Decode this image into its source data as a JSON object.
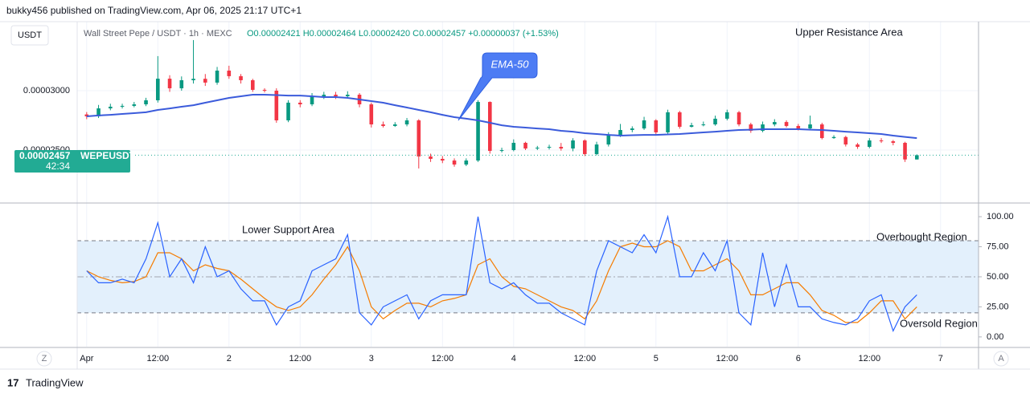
{
  "page": {
    "header": "bukky456 published on TradingView.com, Apr 06, 2025 21:17 UTC+1",
    "currency": "USDT",
    "symbol": "Wall Street Pepe / USDT · 1h · MEXC",
    "ohlc": "O0.00002421 H0.00002464 L0.00002420 C0.00002457 +0.00000037 (+1.53%)",
    "countdown": "42:34",
    "left_button": "Z",
    "right_button": "A",
    "brand": "TradingView",
    "logo": "17"
  },
  "chart_data": [
    {
      "type": "candlestick",
      "annotations": [
        "Upper Resistance Area"
      ],
      "x": [
        0,
        2,
        4,
        6,
        8,
        10,
        12,
        14,
        16,
        18,
        20,
        22,
        24,
        26,
        28,
        30,
        32,
        34,
        36,
        38,
        40,
        42,
        44,
        46,
        48,
        50,
        52,
        54,
        56,
        58,
        60,
        62,
        64,
        66,
        68,
        70,
        72,
        74,
        76,
        78,
        80,
        82,
        84,
        86,
        88,
        90,
        92,
        94,
        96,
        98,
        100,
        102,
        104,
        106,
        108,
        110,
        112,
        114,
        116,
        118,
        120,
        122,
        124,
        126,
        128,
        130,
        132,
        134,
        136,
        138,
        140
      ],
      "xlim": [
        -1.6,
        150.4
      ],
      "xticks": [
        {
          "value": 0,
          "label": "Apr"
        },
        {
          "value": 12,
          "label": "12:00"
        },
        {
          "value": 24,
          "label": "2"
        },
        {
          "value": 36,
          "label": "12:00"
        },
        {
          "value": 48,
          "label": "3"
        },
        {
          "value": 60,
          "label": "12:00"
        },
        {
          "value": 72,
          "label": "4"
        },
        {
          "value": 84,
          "label": "12:00"
        },
        {
          "value": 96,
          "label": "5"
        },
        {
          "value": 108,
          "label": "12:00"
        },
        {
          "value": 120,
          "label": "6"
        },
        {
          "value": 132,
          "label": "12:00"
        },
        {
          "value": 144,
          "label": "7"
        }
      ],
      "ylim": [
        2.061e-05,
        3.581e-05
      ],
      "yticks": [
        {
          "value": 2.5e-05,
          "label": "0.00002500"
        },
        {
          "value": 3e-05,
          "label": "0.00003000"
        }
      ],
      "grid": true,
      "last_price": 2.457e-05,
      "series": [
        {
          "name": "WEPEUSDT",
          "up_color": "#089981",
          "down_color": "#f23645",
          "values": [
            [
              2.8e-05,
              2.82e-05,
              2.76e-05,
              2.784e-05
            ],
            [
              2.784e-05,
              2.88e-05,
              2.77e-05,
              2.851e-05
            ],
            [
              2.851e-05,
              2.89e-05,
              2.835e-05,
              2.865e-05
            ],
            [
              2.865e-05,
              2.89e-05,
              2.85e-05,
              2.872e-05
            ],
            [
              2.872e-05,
              2.905e-05,
              2.86e-05,
              2.885e-05
            ],
            [
              2.885e-05,
              2.94e-05,
              2.87e-05,
              2.919e-05
            ],
            [
              2.919e-05,
              3.291e-05,
              2.9e-05,
              3.101e-05
            ],
            [
              3.101e-05,
              3.13e-05,
              2.99e-05,
              3.02e-05
            ],
            [
              3.02e-05,
              3.12e-05,
              3e-05,
              3.088e-05
            ],
            [
              3.088e-05,
              3.426e-05,
              3.06e-05,
              3.1e-05
            ],
            [
              3.1e-05,
              3.14e-05,
              3.04e-05,
              3.068e-05
            ],
            [
              3.068e-05,
              3.2e-05,
              3.05e-05,
              3.169e-05
            ],
            [
              3.169e-05,
              3.21e-05,
              3.1e-05,
              3.122e-05
            ],
            [
              3.122e-05,
              3.14e-05,
              3.06e-05,
              3.088e-05
            ],
            [
              3.088e-05,
              3.1e-05,
              2.99e-05,
              3.007e-05
            ],
            [
              3.007e-05,
              3.02e-05,
              2.985e-05,
              3e-05
            ],
            [
              3e-05,
              3.02e-05,
              2.73e-05,
              2.75e-05
            ],
            [
              2.75e-05,
              2.92e-05,
              2.735e-05,
              2.899e-05
            ],
            [
              2.899e-05,
              2.92e-05,
              2.86e-05,
              2.885e-05
            ],
            [
              2.885e-05,
              2.98e-05,
              2.87e-05,
              2.953e-05
            ],
            [
              2.953e-05,
              2.99e-05,
              2.93e-05,
              2.966e-05
            ],
            [
              2.966e-05,
              2.99e-05,
              2.93e-05,
              2.953e-05
            ],
            [
              2.953e-05,
              2.995e-05,
              2.94e-05,
              2.966e-05
            ],
            [
              2.966e-05,
              2.98e-05,
              2.86e-05,
              2.885e-05
            ],
            [
              2.885e-05,
              2.9e-05,
              2.69e-05,
              2.716e-05
            ],
            [
              2.716e-05,
              2.74e-05,
              2.69e-05,
              2.703e-05
            ],
            [
              2.703e-05,
              2.735e-05,
              2.695e-05,
              2.716e-05
            ],
            [
              2.716e-05,
              2.77e-05,
              2.7e-05,
              2.75e-05
            ],
            [
              2.75e-05,
              2.76e-05,
              2.345e-05,
              2.446e-05
            ],
            [
              2.446e-05,
              2.47e-05,
              2.4e-05,
              2.426e-05
            ],
            [
              2.426e-05,
              2.45e-05,
              2.39e-05,
              2.412e-05
            ],
            [
              2.412e-05,
              2.43e-05,
              2.36e-05,
              2.378e-05
            ],
            [
              2.378e-05,
              2.43e-05,
              2.365e-05,
              2.412e-05
            ],
            [
              2.412e-05,
              2.92e-05,
              2.4e-05,
              2.905e-05
            ],
            [
              2.905e-05,
              2.91e-05,
              2.47e-05,
              2.493e-05
            ],
            [
              2.493e-05,
              2.52e-05,
              2.48e-05,
              2.5e-05
            ],
            [
              2.5e-05,
              2.59e-05,
              2.49e-05,
              2.561e-05
            ],
            [
              2.561e-05,
              2.57e-05,
              2.5e-05,
              2.513e-05
            ],
            [
              2.513e-05,
              2.535e-05,
              2.5e-05,
              2.52e-05
            ],
            [
              2.52e-05,
              2.545e-05,
              2.505e-05,
              2.527e-05
            ],
            [
              2.527e-05,
              2.56e-05,
              2.495e-05,
              2.513e-05
            ],
            [
              2.513e-05,
              2.6e-05,
              2.49e-05,
              2.581e-05
            ],
            [
              2.581e-05,
              2.59e-05,
              2.45e-05,
              2.466e-05
            ],
            [
              2.466e-05,
              2.57e-05,
              2.455e-05,
              2.547e-05
            ],
            [
              2.547e-05,
              2.65e-05,
              2.53e-05,
              2.628e-05
            ],
            [
              2.628e-05,
              2.72e-05,
              2.61e-05,
              2.669e-05
            ],
            [
              2.669e-05,
              2.7e-05,
              2.65e-05,
              2.682e-05
            ],
            [
              2.682e-05,
              2.78e-05,
              2.67e-05,
              2.75e-05
            ],
            [
              2.75e-05,
              2.76e-05,
              2.63e-05,
              2.649e-05
            ],
            [
              2.649e-05,
              2.84e-05,
              2.63e-05,
              2.818e-05
            ],
            [
              2.818e-05,
              2.83e-05,
              2.68e-05,
              2.696e-05
            ],
            [
              2.696e-05,
              2.73e-05,
              2.69e-05,
              2.709e-05
            ],
            [
              2.709e-05,
              2.74e-05,
              2.7e-05,
              2.716e-05
            ],
            [
              2.716e-05,
              2.79e-05,
              2.705e-05,
              2.764e-05
            ],
            [
              2.764e-05,
              2.84e-05,
              2.75e-05,
              2.818e-05
            ],
            [
              2.818e-05,
              2.83e-05,
              2.7e-05,
              2.716e-05
            ],
            [
              2.716e-05,
              2.73e-05,
              2.645e-05,
              2.662e-05
            ],
            [
              2.662e-05,
              2.74e-05,
              2.65e-05,
              2.716e-05
            ],
            [
              2.716e-05,
              2.76e-05,
              2.7e-05,
              2.736e-05
            ],
            [
              2.736e-05,
              2.75e-05,
              2.69e-05,
              2.703e-05
            ],
            [
              2.703e-05,
              2.72e-05,
              2.665e-05,
              2.682e-05
            ],
            [
              2.682e-05,
              2.79e-05,
              2.67e-05,
              2.716e-05
            ],
            [
              2.716e-05,
              2.73e-05,
              2.59e-05,
              2.601e-05
            ],
            [
              2.601e-05,
              2.625e-05,
              2.595e-05,
              2.61e-05
            ],
            [
              2.61e-05,
              2.62e-05,
              2.53e-05,
              2.547e-05
            ],
            [
              2.547e-05,
              2.56e-05,
              2.51e-05,
              2.527e-05
            ],
            [
              2.527e-05,
              2.6e-05,
              2.515e-05,
              2.581e-05
            ],
            [
              2.581e-05,
              2.6e-05,
              2.56e-05,
              2.574e-05
            ],
            [
              2.574e-05,
              2.585e-05,
              2.54e-05,
              2.561e-05
            ],
            [
              2.561e-05,
              2.57e-05,
              2.4e-05,
              2.421e-05
            ],
            [
              2.421e-05,
              2.464e-05,
              2.42e-05,
              2.457e-05
            ]
          ]
        },
        {
          "name": "EMA-50",
          "color": "#3b5bdb",
          "values": [
            2.784e-05,
            2.791e-05,
            2.797e-05,
            2.804e-05,
            2.811e-05,
            2.818e-05,
            2.838e-05,
            2.851e-05,
            2.865e-05,
            2.878e-05,
            2.899e-05,
            2.919e-05,
            2.939e-05,
            2.953e-05,
            2.966e-05,
            2.966e-05,
            2.963e-05,
            2.959e-05,
            2.959e-05,
            2.953e-05,
            2.946e-05,
            2.946e-05,
            2.939e-05,
            2.926e-05,
            2.912e-05,
            2.899e-05,
            2.878e-05,
            2.858e-05,
            2.838e-05,
            2.818e-05,
            2.797e-05,
            2.777e-05,
            2.764e-05,
            2.75e-05,
            2.73e-05,
            2.709e-05,
            2.696e-05,
            2.689e-05,
            2.682e-05,
            2.676e-05,
            2.662e-05,
            2.655e-05,
            2.642e-05,
            2.635e-05,
            2.628e-05,
            2.622e-05,
            2.625e-05,
            2.628e-05,
            2.628e-05,
            2.632e-05,
            2.635e-05,
            2.642e-05,
            2.649e-05,
            2.655e-05,
            2.662e-05,
            2.669e-05,
            2.672e-05,
            2.676e-05,
            2.676e-05,
            2.676e-05,
            2.676e-05,
            2.672e-05,
            2.669e-05,
            2.662e-05,
            2.655e-05,
            2.649e-05,
            2.642e-05,
            2.635e-05,
            2.622e-05,
            2.611e-05,
            2.601e-05
          ]
        }
      ]
    },
    {
      "type": "line",
      "annotations": [
        "Lower Support Area",
        "Overbought Region",
        "Oversold Region"
      ],
      "x": [
        0,
        2,
        4,
        6,
        8,
        10,
        12,
        14,
        16,
        18,
        20,
        22,
        24,
        26,
        28,
        30,
        32,
        34,
        36,
        38,
        40,
        42,
        44,
        46,
        48,
        50,
        52,
        54,
        56,
        58,
        60,
        62,
        64,
        66,
        68,
        70,
        72,
        74,
        76,
        78,
        80,
        82,
        84,
        86,
        88,
        90,
        92,
        94,
        96,
        98,
        100,
        102,
        104,
        106,
        108,
        110,
        112,
        114,
        116,
        118,
        120,
        122,
        124,
        126,
        128,
        130,
        132,
        134,
        136,
        138,
        140
      ],
      "xlim": [
        -1.6,
        150.4
      ],
      "ylim": [
        -8.1,
        110.7
      ],
      "yticks": [
        {
          "value": 0,
          "label": "0.00"
        },
        {
          "value": 25,
          "label": "25.00"
        },
        {
          "value": 50,
          "label": "50.00"
        },
        {
          "value": 75,
          "label": "75.00"
        },
        {
          "value": 100,
          "label": "100.00"
        }
      ],
      "band": [
        20,
        80
      ],
      "midline": 50,
      "band_color": "#e3f0fc",
      "series": [
        {
          "color": "#2962ff",
          "values": [
            55,
            45,
            45,
            48,
            45,
            65,
            95,
            50,
            65,
            45,
            75,
            50,
            55,
            40,
            30,
            30,
            10,
            25,
            30,
            55,
            60,
            65,
            85,
            20,
            10,
            25,
            30,
            35,
            15,
            30,
            35,
            35,
            35,
            100,
            45,
            40,
            45,
            35,
            28,
            28,
            20,
            15,
            10,
            55,
            80,
            75,
            70,
            85,
            70,
            100,
            50,
            50,
            70,
            55,
            80,
            20,
            10,
            70,
            25,
            60,
            25,
            25,
            15,
            12,
            10,
            15,
            30,
            35,
            5,
            25,
            35
          ]
        },
        {
          "color": "#f57c00",
          "values": [
            55,
            50,
            47,
            45,
            46,
            50,
            70,
            70,
            65,
            55,
            60,
            57,
            55,
            48,
            40,
            32,
            25,
            22,
            25,
            35,
            48,
            60,
            75,
            55,
            25,
            15,
            22,
            28,
            28,
            25,
            30,
            32,
            35,
            60,
            65,
            50,
            42,
            40,
            35,
            30,
            25,
            22,
            15,
            30,
            55,
            75,
            78,
            75,
            75,
            80,
            75,
            55,
            55,
            60,
            65,
            55,
            35,
            35,
            40,
            45,
            45,
            35,
            22,
            18,
            12,
            12,
            20,
            30,
            30,
            15,
            25
          ]
        }
      ]
    }
  ]
}
